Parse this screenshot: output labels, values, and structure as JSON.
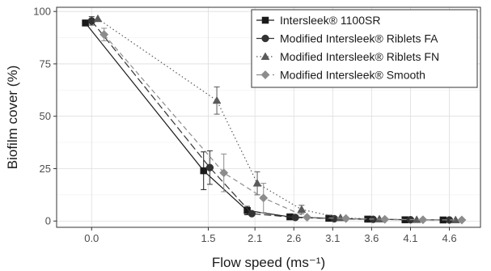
{
  "chart_data": {
    "type": "line",
    "xlabel": "Flow speed (ms⁻¹)",
    "ylabel": "Biofilm cover (%)",
    "x_ticks": [
      0.0,
      1.5,
      2.1,
      2.6,
      3.1,
      3.6,
      4.1,
      4.6
    ],
    "x_tick_labels": [
      "0.0",
      "1.5",
      "2.1",
      "2.6",
      "3.1",
      "3.6",
      "4.1",
      "4.6"
    ],
    "y_ticks": [
      0,
      25,
      50,
      75,
      100
    ],
    "y_tick_labels": [
      "0",
      "25",
      "50",
      "75",
      "100"
    ],
    "xlim": [
      -0.45,
      5.0
    ],
    "ylim": [
      -3,
      102
    ],
    "grid": true,
    "legend_position": "top-right",
    "series": [
      {
        "name": "Intersleek® 1100SR",
        "marker": "square",
        "line": "solid",
        "color": "#1a1a1a",
        "x": [
          -0.08,
          1.44,
          2.0,
          2.55,
          3.05,
          3.55,
          4.03,
          4.52
        ],
        "y": [
          94.5,
          24.0,
          5.0,
          2.0,
          1.3,
          0.9,
          0.6,
          0.5
        ],
        "err": [
          1.0,
          9.0,
          2.0,
          0.5,
          0.4,
          0.3,
          0.2,
          0.2
        ]
      },
      {
        "name": "Modified Intersleek® Riblets FA",
        "marker": "circle",
        "line": "longdash",
        "color": "#333333",
        "x": [
          0.0,
          1.52,
          2.06,
          2.62,
          3.12,
          3.62,
          4.1,
          4.6
        ],
        "y": [
          95.5,
          25.5,
          3.5,
          1.7,
          1.1,
          0.8,
          0.6,
          0.5
        ],
        "err": [
          2.0,
          8.0,
          1.0,
          0.5,
          0.3,
          0.2,
          0.2,
          0.2
        ]
      },
      {
        "name": "Modified Intersleek® Riblets FN",
        "marker": "triangle",
        "line": "dotted",
        "color": "#5a5a5a",
        "x": [
          0.08,
          1.61,
          2.13,
          2.7,
          3.2,
          3.7,
          4.18,
          4.68
        ],
        "y": [
          96.5,
          57.5,
          18.0,
          5.5,
          1.5,
          0.9,
          0.6,
          0.5
        ],
        "err": [
          1.0,
          6.5,
          5.5,
          2.0,
          0.6,
          0.3,
          0.2,
          0.2
        ]
      },
      {
        "name": "Modified Intersleek® Smooth",
        "marker": "diamond",
        "line": "dashed",
        "color": "#8c8c8c",
        "x": [
          0.16,
          1.7,
          2.21,
          2.77,
          3.27,
          3.77,
          4.26,
          4.76
        ],
        "y": [
          89.0,
          23.0,
          11.0,
          1.8,
          1.2,
          0.8,
          0.6,
          0.5
        ],
        "err": [
          3.0,
          9.0,
          7.0,
          0.8,
          0.4,
          0.3,
          0.2,
          0.2
        ]
      }
    ]
  }
}
